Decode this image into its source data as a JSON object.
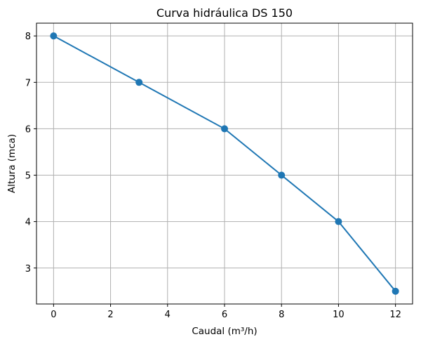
{
  "chart_data": {
    "type": "line",
    "title": "Curva hidráulica DS 150",
    "xlabel": "Caudal (m³/h)",
    "ylabel": "Altura (mca)",
    "x": [
      0,
      3,
      6,
      8,
      10,
      12
    ],
    "series": [
      {
        "values": [
          8,
          7,
          6,
          5,
          4,
          2.5
        ],
        "color": "#1f77b4",
        "marker": "circle"
      }
    ],
    "xlim": [
      -0.6,
      12.6
    ],
    "ylim": [
      2.225,
      8.275
    ],
    "xticks": [
      "0",
      "2",
      "4",
      "6",
      "8",
      "10",
      "12"
    ],
    "yticks": [
      "3",
      "4",
      "5",
      "6",
      "7",
      "8"
    ],
    "grid": true,
    "legend": "none"
  }
}
